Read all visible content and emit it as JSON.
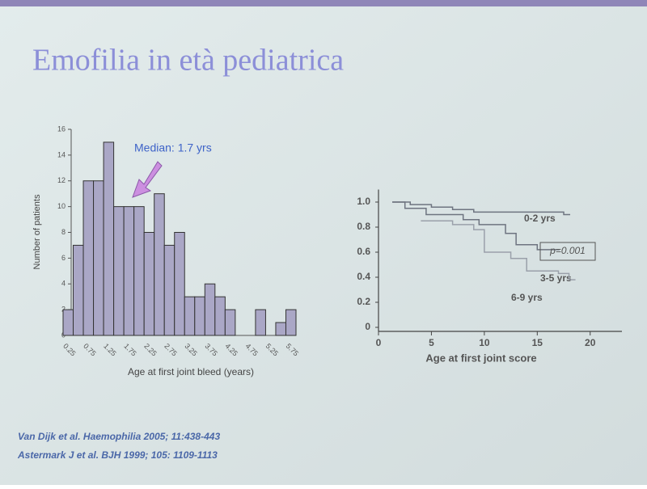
{
  "title": "Emofilia in età pediatrica",
  "references": [
    "Van Dijk et al. Haemophilia 2005; 11:438-443",
    "Astermark J et al. BJH 1999; 105: 1109-1113"
  ],
  "chart_data": [
    {
      "type": "bar",
      "xlabel": "Age at first joint bleed (years)",
      "ylabel": "Number of patients",
      "annotation": "Median: 1.7 yrs",
      "categories": [
        "0.25",
        null,
        "0.75",
        null,
        "1.25",
        null,
        "1.75",
        null,
        "2.25",
        null,
        "2.75",
        null,
        "3.25",
        null,
        "3.75",
        null,
        "4.25",
        null,
        "4.75",
        null,
        "5.25",
        null,
        "5.75"
      ],
      "values": [
        2,
        7,
        12,
        12,
        15,
        10,
        10,
        10,
        8,
        11,
        7,
        8,
        3,
        3,
        4,
        3,
        2,
        0,
        0,
        2,
        0,
        1,
        2
      ],
      "color": "#aaa7c6",
      "ylim": [
        0,
        16
      ],
      "yticks": [
        0,
        2,
        4,
        6,
        8,
        10,
        12,
        14,
        16
      ]
    },
    {
      "type": "step",
      "xlabel": "Age at first joint score",
      "annotation": "p=0.001",
      "xlim": [
        0,
        23
      ],
      "xticks": [
        0,
        5,
        10,
        15,
        20
      ],
      "ylim": [
        0,
        1.1
      ],
      "yticks": [
        0,
        0.2,
        0.4,
        0.6,
        0.8,
        {
          "value": 1,
          "label": "1.0"
        }
      ],
      "series": [
        {
          "name": "0-2 yrs",
          "color": "#6e7480",
          "x": [
            1.3,
            3,
            5,
            7,
            9,
            13,
            17.5
          ],
          "values": [
            1.0,
            0.98,
            0.96,
            0.94,
            0.92,
            0.92,
            0.9
          ]
        },
        {
          "name": "3-5 yrs",
          "color": "#6e7480",
          "x": [
            1.3,
            2.5,
            4.5,
            7,
            8,
            9.5,
            12,
            13,
            15,
            16.5
          ],
          "values": [
            1.0,
            0.95,
            0.9,
            0.9,
            0.86,
            0.82,
            0.75,
            0.66,
            0.62,
            0.62
          ]
        },
        {
          "name": "6-9 yrs",
          "color": "#9aa0aa",
          "x": [
            4,
            5,
            7,
            9,
            10,
            11,
            12.5,
            14,
            17,
            18
          ],
          "values": [
            0.85,
            0.85,
            0.82,
            0.78,
            0.6,
            0.6,
            0.55,
            0.45,
            0.43,
            0.38
          ]
        }
      ]
    }
  ]
}
